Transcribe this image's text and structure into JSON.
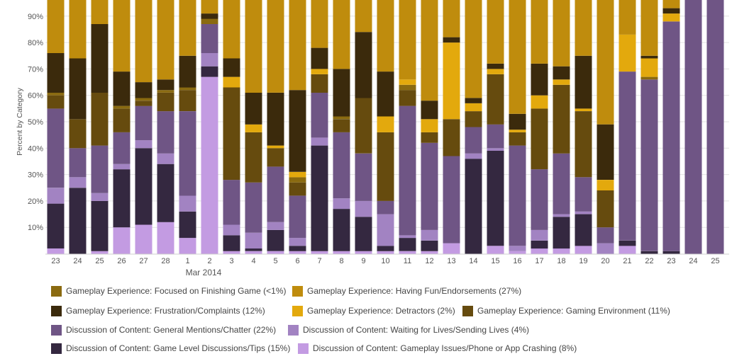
{
  "chart_data": {
    "type": "bar",
    "stacked": true,
    "title": "",
    "xlabel": "",
    "ylabel": "Percent by Category",
    "ylim": [
      0,
      100
    ],
    "y_ticks": [
      10,
      20,
      30,
      40,
      50,
      60,
      70,
      80,
      90
    ],
    "y_tick_labels": [
      "10%",
      "20%",
      "30%",
      "40%",
      "50%",
      "60%",
      "70%",
      "80%",
      "90%"
    ],
    "categories": [
      "23",
      "24",
      "25",
      "26",
      "27",
      "28",
      "1",
      "2",
      "3",
      "4",
      "5",
      "6",
      "7",
      "8",
      "9",
      "10",
      "11",
      "12",
      "13",
      "14",
      "15",
      "16",
      "17",
      "18",
      "19",
      "20",
      "21",
      "22",
      "23",
      "24",
      "25"
    ],
    "month_label": "Mar 2014",
    "grid": true,
    "legend_position": "bottom",
    "series": [
      {
        "name": "Discussion of Content: Gameplay Issues/Phone or App Crashing (8%)",
        "color": "#c39be2",
        "values": [
          2,
          0,
          1,
          10,
          11,
          12,
          6,
          67,
          1,
          1,
          1,
          1,
          1,
          1,
          1,
          1,
          1,
          1,
          4,
          0,
          3,
          1,
          2,
          2,
          3,
          0,
          3,
          0,
          0,
          0,
          0
        ]
      },
      {
        "name": "Discussion of Content: Game Level Discussions/Tips (15%)",
        "color": "#342840",
        "values": [
          17,
          25,
          19,
          22,
          29,
          22,
          10,
          4,
          6,
          1,
          8,
          2,
          40,
          16,
          13,
          2,
          5,
          4,
          0,
          36,
          36,
          0,
          3,
          12,
          12,
          0,
          2,
          1,
          1,
          0,
          0
        ]
      },
      {
        "name": "Discussion of Content: Waiting for Lives/Sending Lives (4%)",
        "color": "#a283c2",
        "values": [
          6,
          4,
          3,
          2,
          3,
          4,
          6,
          5,
          4,
          6,
          3,
          3,
          3,
          4,
          6,
          12,
          1,
          4,
          0,
          2,
          1,
          2,
          4,
          1,
          1,
          4,
          0,
          0,
          0,
          0,
          0
        ]
      },
      {
        "name": "Discussion of Content: General Mentions/Chatter (22%)",
        "color": "#6f5585",
        "values": [
          30,
          11,
          18,
          12,
          13,
          16,
          32,
          11,
          17,
          19,
          21,
          16,
          17,
          25,
          18,
          5,
          49,
          33,
          33,
          10,
          9,
          38,
          23,
          23,
          13,
          6,
          64,
          65,
          87,
          100,
          100
        ]
      },
      {
        "name": "Gameplay Experience: Gaming Environment (11%)",
        "color": "#664b0e",
        "values": [
          5,
          11,
          20,
          9,
          2,
          7,
          8,
          0,
          35,
          19,
          7,
          5,
          7,
          5,
          21,
          26,
          6,
          4,
          14,
          6,
          19,
          5,
          23,
          26,
          25,
          14,
          0,
          0,
          0,
          0,
          0
        ]
      },
      {
        "name": "Gameplay Experience: Focused on Finishing Game (<1%)",
        "color": "#8a6a10",
        "values": [
          1,
          0,
          0,
          1,
          1,
          1,
          1,
          2,
          0,
          0,
          0,
          2,
          0,
          1,
          0,
          0,
          2,
          0,
          0,
          0,
          0,
          0,
          0,
          0,
          0,
          0,
          0,
          1,
          0,
          0,
          0
        ]
      },
      {
        "name": "Gameplay Experience: Detractors (2%)",
        "color": "#e3a90d",
        "values": [
          0,
          0,
          0,
          0,
          0,
          0,
          0,
          0,
          4,
          3,
          1,
          2,
          2,
          0,
          0,
          6,
          2,
          5,
          29,
          3,
          2,
          1,
          5,
          2,
          1,
          4,
          14,
          7,
          3,
          0,
          0
        ]
      },
      {
        "name": "Gameplay Experience: Frustration/Complaints (12%)",
        "color": "#3b2a0c",
        "values": [
          15,
          23,
          26,
          13,
          6,
          4,
          12,
          2,
          7,
          12,
          20,
          31,
          8,
          18,
          25,
          17,
          0,
          7,
          2,
          2,
          2,
          6,
          12,
          5,
          20,
          21,
          0,
          1,
          2,
          0,
          0
        ]
      },
      {
        "name": "Gameplay Experience: Having Fun/Endorsements (27%)",
        "color": "#bf8c0d",
        "values": [
          24,
          26,
          13,
          31,
          35,
          34,
          25,
          9,
          26,
          39,
          38,
          40,
          22,
          30,
          16,
          31,
          34,
          42,
          18,
          41,
          28,
          47,
          28,
          29,
          25,
          51,
          17,
          26,
          7,
          0,
          0
        ]
      }
    ]
  },
  "legend": {
    "rows": [
      [
        {
          "label": "Gameplay Experience: Focused on Finishing Game (<1%)",
          "color": "#8a6a10"
        },
        {
          "label": "Gameplay Experience: Having Fun/Endorsements (27%)",
          "color": "#bf8c0d"
        }
      ],
      [
        {
          "label": "Gameplay Experience: Frustration/Complaints (12%)",
          "color": "#3b2a0c"
        },
        {
          "label": "Gameplay Experience: Detractors (2%)",
          "color": "#e3a90d"
        },
        {
          "label": "Gameplay Experience: Gaming Environment (11%)",
          "color": "#664b0e"
        }
      ],
      [
        {
          "label": "Discussion of Content: General Mentions/Chatter (22%)",
          "color": "#6f5585"
        },
        {
          "label": "Discussion of Content: Waiting for Lives/Sending Lives (4%)",
          "color": "#a283c2"
        }
      ],
      [
        {
          "label": "Discussion of Content: Game Level Discussions/Tips (15%)",
          "color": "#342840"
        },
        {
          "label": "Discussion of Content: Gameplay Issues/Phone or App Crashing (8%)",
          "color": "#c39be2"
        }
      ]
    ]
  }
}
